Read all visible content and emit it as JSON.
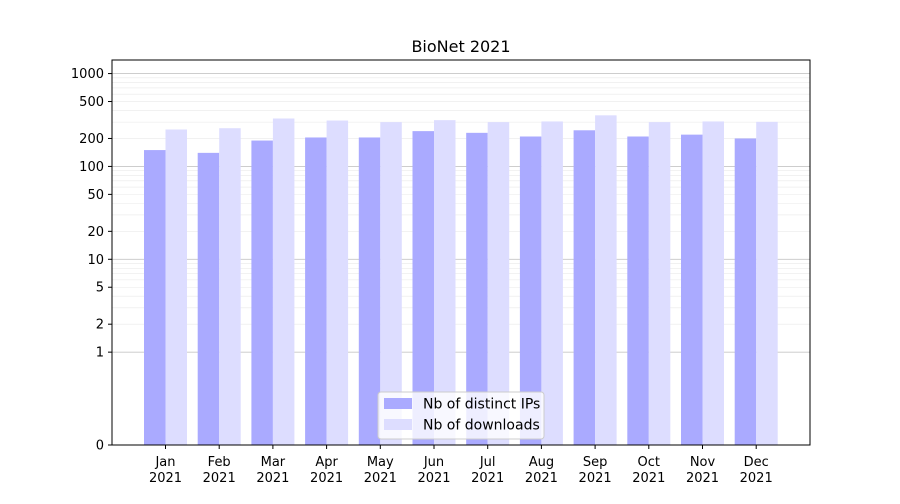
{
  "chart_data": {
    "type": "bar",
    "title": "BioNet 2021",
    "xlabel": "",
    "ylabel": "",
    "yscale": "symlog",
    "ylim": [
      0,
      1400
    ],
    "y_ticks": [
      {
        "value": 0,
        "label": "0"
      },
      {
        "value": 1,
        "label": "1"
      },
      {
        "value": 2,
        "label": "2"
      },
      {
        "value": 5,
        "label": "5"
      },
      {
        "value": 10,
        "label": "10"
      },
      {
        "value": 20,
        "label": "20"
      },
      {
        "value": 50,
        "label": "50"
      },
      {
        "value": 100,
        "label": "100"
      },
      {
        "value": 200,
        "label": "200"
      },
      {
        "value": 500,
        "label": "500"
      },
      {
        "value": 1000,
        "label": "1000"
      }
    ],
    "categories": [
      {
        "month": "Jan",
        "year": "2021"
      },
      {
        "month": "Feb",
        "year": "2021"
      },
      {
        "month": "Mar",
        "year": "2021"
      },
      {
        "month": "Apr",
        "year": "2021"
      },
      {
        "month": "May",
        "year": "2021"
      },
      {
        "month": "Jun",
        "year": "2021"
      },
      {
        "month": "Jul",
        "year": "2021"
      },
      {
        "month": "Aug",
        "year": "2021"
      },
      {
        "month": "Sep",
        "year": "2021"
      },
      {
        "month": "Oct",
        "year": "2021"
      },
      {
        "month": "Nov",
        "year": "2021"
      },
      {
        "month": "Dec",
        "year": "2021"
      }
    ],
    "series": [
      {
        "name": "Nb of distinct IPs",
        "color": "#aaaaff",
        "values": [
          150,
          140,
          190,
          205,
          205,
          240,
          230,
          210,
          245,
          210,
          220,
          200
        ]
      },
      {
        "name": "Nb of downloads",
        "color": "#ddddff",
        "values": [
          250,
          258,
          328,
          312,
          300,
          315,
          300,
          305,
          355,
          300,
          305,
          302
        ]
      }
    ],
    "grid": true,
    "legend_position": "bottom-center"
  }
}
